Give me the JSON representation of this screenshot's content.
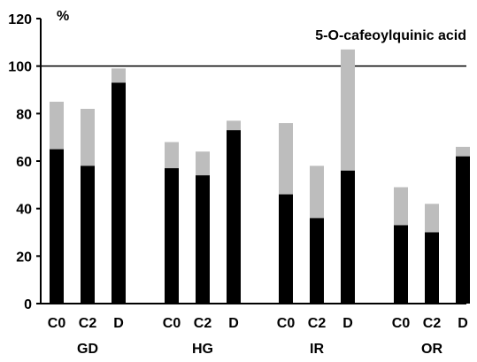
{
  "chart_data": {
    "type": "bar",
    "title": "5-O-cafeoylquinic acid",
    "ylabel": "%",
    "ylim": [
      0,
      120
    ],
    "yticks": [
      0,
      20,
      40,
      60,
      80,
      100,
      120
    ],
    "reference_line": 100,
    "stacked": true,
    "groups": [
      {
        "name": "GD",
        "categories": [
          "C0",
          "C2",
          "D"
        ],
        "lower": [
          65,
          58,
          93
        ],
        "total": [
          85,
          82,
          99
        ]
      },
      {
        "name": "HG",
        "categories": [
          "C0",
          "C2",
          "D"
        ],
        "lower": [
          57,
          54,
          73
        ],
        "total": [
          68,
          64,
          77
        ]
      },
      {
        "name": "IR",
        "categories": [
          "C0",
          "C2",
          "D"
        ],
        "lower": [
          46,
          36,
          56
        ],
        "total": [
          76,
          58,
          107
        ]
      },
      {
        "name": "OR",
        "categories": [
          "C0",
          "C2",
          "D"
        ],
        "lower": [
          33,
          30,
          62
        ],
        "total": [
          49,
          42,
          66
        ]
      }
    ],
    "colors": {
      "lower": "#000000",
      "upper": "#bdbdbd",
      "axis": "#000000"
    },
    "grid": false,
    "legend": "none"
  }
}
